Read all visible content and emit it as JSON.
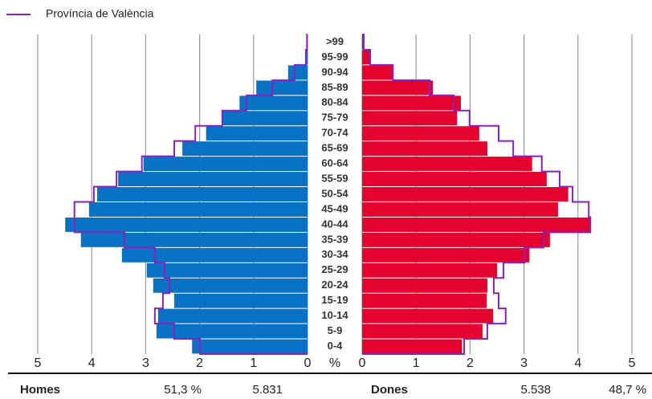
{
  "chart_data": {
    "type": "pyramid",
    "legend": "Província de València",
    "axis_label": "%",
    "categories": [
      ">99",
      "95-99",
      "90-94",
      "85-89",
      "80-84",
      "75-79",
      "70-74",
      "65-69",
      "60-64",
      "55-59",
      "50-54",
      "45-49",
      "40-44",
      "35-39",
      "30-34",
      "25-29",
      "20-24",
      "15-19",
      "10-14",
      "5-9",
      "0-4"
    ],
    "series": [
      {
        "name": "Homes",
        "side": "left",
        "color": "#0a72c4",
        "values": [
          0.01,
          0.04,
          0.36,
          0.95,
          1.26,
          1.58,
          1.88,
          2.32,
          3.04,
          3.51,
          3.9,
          4.05,
          4.49,
          4.2,
          3.44,
          2.98,
          2.86,
          2.47,
          2.77,
          2.8,
          2.14
        ]
      },
      {
        "name": "Dones",
        "side": "right",
        "color": "#e4032e",
        "values": [
          0.03,
          0.16,
          0.58,
          1.31,
          1.83,
          1.76,
          2.17,
          2.32,
          3.15,
          3.42,
          3.82,
          3.63,
          4.23,
          3.48,
          3.1,
          2.5,
          2.32,
          2.31,
          2.43,
          2.23,
          1.85
        ]
      }
    ],
    "reference": {
      "color": "#8a20c2",
      "left": [
        0.01,
        0.03,
        0.24,
        0.65,
        1.13,
        1.58,
        2.08,
        2.47,
        3.07,
        3.54,
        3.96,
        4.32,
        4.32,
        3.39,
        2.83,
        2.65,
        2.56,
        2.68,
        2.83,
        2.47,
        1.99
      ],
      "right": [
        0.03,
        0.15,
        0.57,
        1.25,
        1.7,
        1.99,
        2.53,
        2.8,
        3.33,
        3.66,
        3.9,
        4.2,
        4.23,
        3.36,
        3.01,
        2.62,
        2.44,
        2.53,
        2.66,
        2.32,
        1.89
      ]
    },
    "xlim": [
      0,
      5
    ],
    "xticks": [
      0,
      1,
      2,
      3,
      4,
      5
    ],
    "grid": true,
    "footer": {
      "left": {
        "label": "Homes",
        "share": 51.3,
        "share_label": "51,3 %",
        "count": 5831,
        "count_label": "5.831"
      },
      "right": {
        "label": "Dones",
        "share": 48.7,
        "share_label": "48,7 %",
        "count": 5538,
        "count_label": "5.538"
      }
    }
  }
}
